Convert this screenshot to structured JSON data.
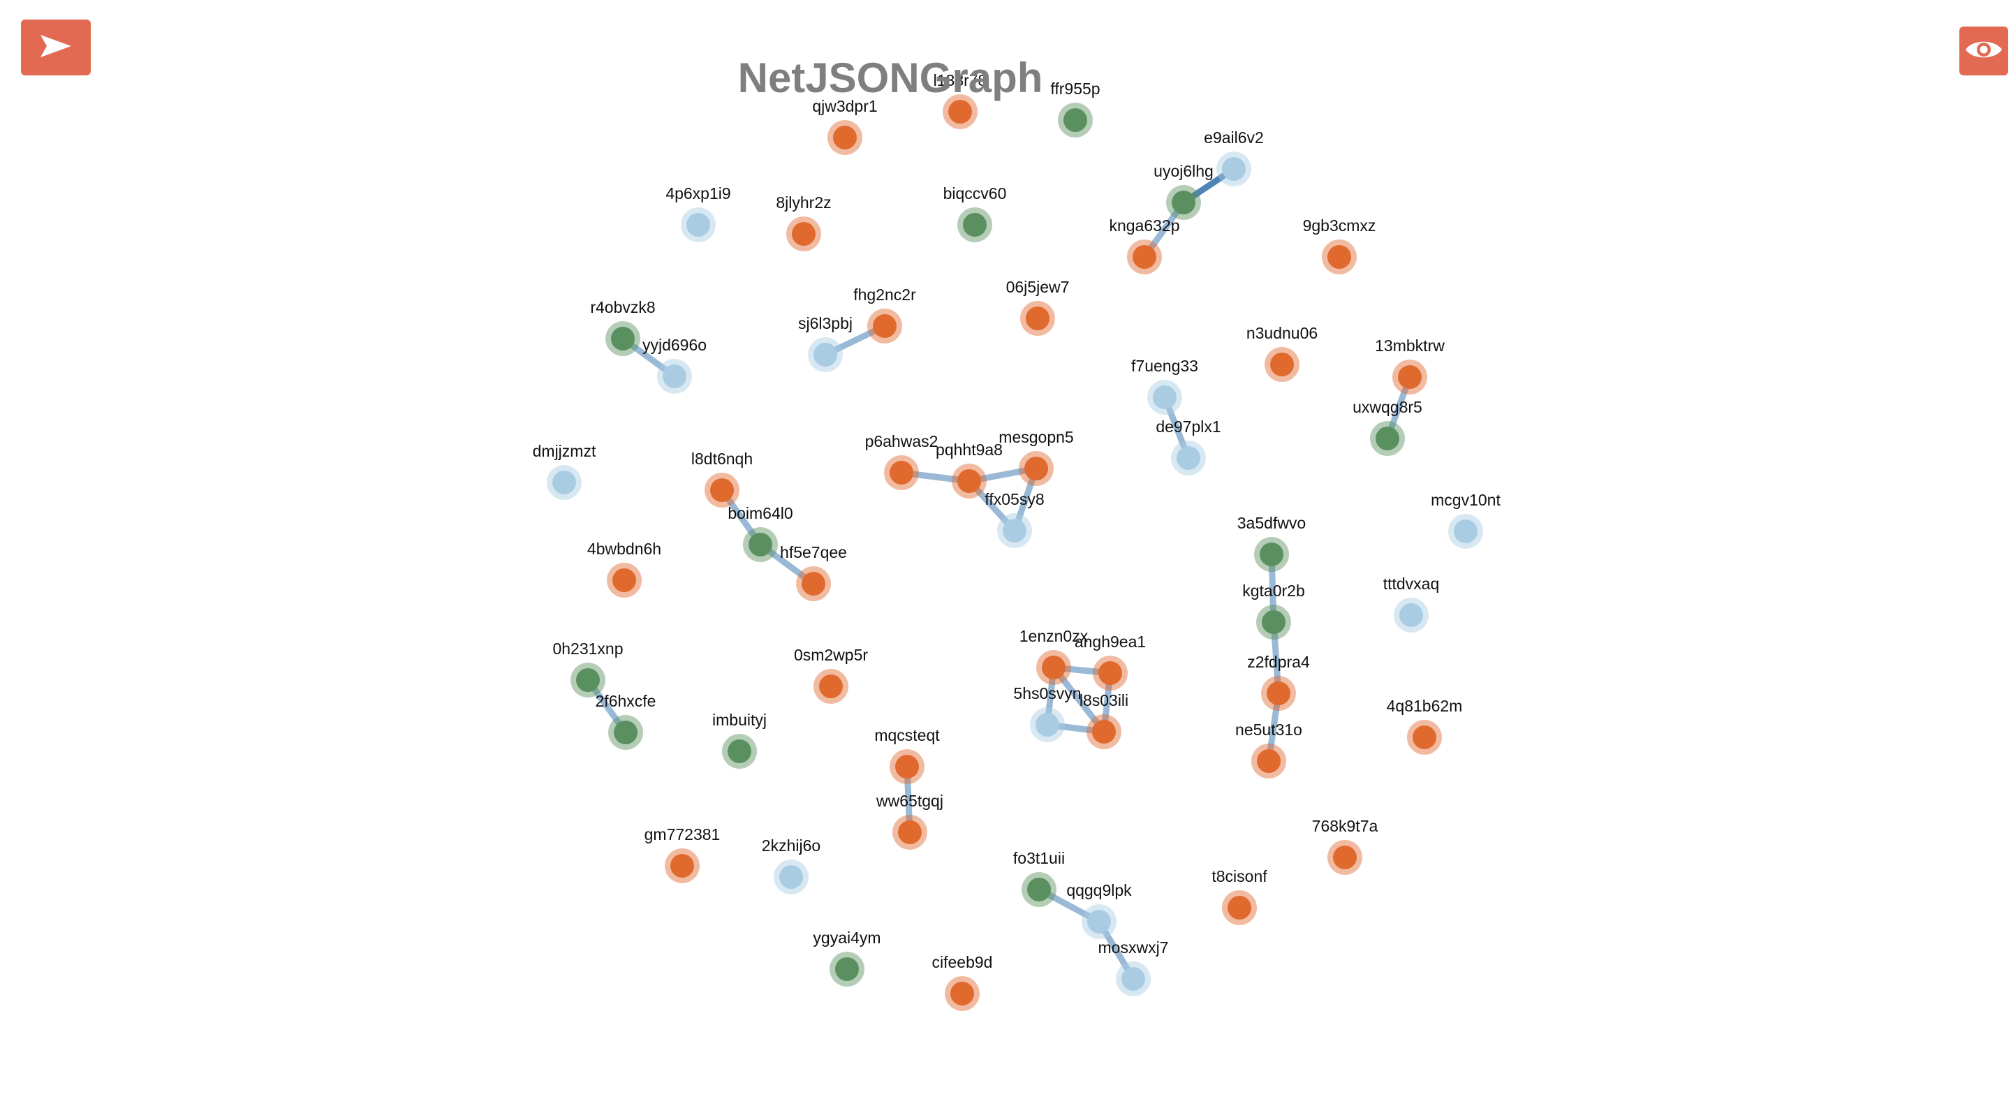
{
  "title": "NetJSONGraph",
  "controls": {
    "menu_icon": "arrow-right-icon",
    "view_icon": "eye-icon",
    "button_color": "#e26a53"
  },
  "colors": {
    "orange": "#e0692e",
    "green": "#5a9060",
    "blue": "#a9cce3",
    "link": "#9ab9d6",
    "link_dark": "#4f84b6"
  },
  "nodes": [
    {
      "id": "l133r78",
      "label": "l133r78",
      "type": "orange"
    },
    {
      "id": "ffr955p",
      "label": "ffr955p",
      "type": "green"
    },
    {
      "id": "qjw3dpr1",
      "label": "qjw3dpr1",
      "type": "orange"
    },
    {
      "id": "e9ail6v2",
      "label": "e9ail6v2",
      "type": "blue"
    },
    {
      "id": "uyoj6lhg",
      "label": "uyoj6lhg",
      "type": "green"
    },
    {
      "id": "4p6xp1i9",
      "label": "4p6xp1i9",
      "type": "blue"
    },
    {
      "id": "8jlyhr2z",
      "label": "8jlyhr2z",
      "type": "orange"
    },
    {
      "id": "biqccv60",
      "label": "biqccv60",
      "type": "green"
    },
    {
      "id": "knga632p",
      "label": "knga632p",
      "type": "orange"
    },
    {
      "id": "9gb3cmxz",
      "label": "9gb3cmxz",
      "type": "orange"
    },
    {
      "id": "fhg2nc2r",
      "label": "fhg2nc2r",
      "type": "orange"
    },
    {
      "id": "06j5jew7",
      "label": "06j5jew7",
      "type": "orange"
    },
    {
      "id": "r4obvzk8",
      "label": "r4obvzk8",
      "type": "green"
    },
    {
      "id": "sj6l3pbj",
      "label": "sj6l3pbj",
      "type": "blue"
    },
    {
      "id": "yyjd696o",
      "label": "yyjd696o",
      "type": "blue"
    },
    {
      "id": "n3udnu06",
      "label": "n3udnu06",
      "type": "orange"
    },
    {
      "id": "13mbktrw",
      "label": "13mbktrw",
      "type": "orange"
    },
    {
      "id": "f7ueng33",
      "label": "f7ueng33",
      "type": "blue"
    },
    {
      "id": "uxwqg8r5",
      "label": "uxwqg8r5",
      "type": "green"
    },
    {
      "id": "de97plx1",
      "label": "de97plx1",
      "type": "blue"
    },
    {
      "id": "dmjjzmzt",
      "label": "dmjjzmzt",
      "type": "blue"
    },
    {
      "id": "l8dt6nqh",
      "label": "l8dt6nqh",
      "type": "orange"
    },
    {
      "id": "p6ahwas2",
      "label": "p6ahwas2",
      "type": "orange"
    },
    {
      "id": "pqhht9a8",
      "label": "pqhht9a8",
      "type": "orange"
    },
    {
      "id": "mesgopn5",
      "label": "mesgopn5",
      "type": "orange"
    },
    {
      "id": "ffx05sy8",
      "label": "ffx05sy8",
      "type": "blue"
    },
    {
      "id": "mcgv10nt",
      "label": "mcgv10nt",
      "type": "blue"
    },
    {
      "id": "boim64l0",
      "label": "boim64l0",
      "type": "green"
    },
    {
      "id": "3a5dfwvo",
      "label": "3a5dfwvo",
      "type": "green"
    },
    {
      "id": "4bwbdn6h",
      "label": "4bwbdn6h",
      "type": "orange"
    },
    {
      "id": "hf5e7qee",
      "label": "hf5e7qee",
      "type": "orange"
    },
    {
      "id": "kgta0r2b",
      "label": "kgta0r2b",
      "type": "green"
    },
    {
      "id": "tttdvxaq",
      "label": "tttdvxaq",
      "type": "blue"
    },
    {
      "id": "1enzn0zx",
      "label": "1enzn0zx",
      "type": "orange"
    },
    {
      "id": "angh9ea1",
      "label": "angh9ea1",
      "type": "orange"
    },
    {
      "id": "0h231xnp",
      "label": "0h231xnp",
      "type": "green"
    },
    {
      "id": "0sm2wp5r",
      "label": "0sm2wp5r",
      "type": "orange"
    },
    {
      "id": "z2fdpra4",
      "label": "z2fdpra4",
      "type": "orange"
    },
    {
      "id": "5hs0svyn",
      "label": "5hs0svyn",
      "type": "blue"
    },
    {
      "id": "l8s03ili",
      "label": "l8s03ili",
      "type": "orange"
    },
    {
      "id": "2f6hxcfe",
      "label": "2f6hxcfe",
      "type": "green"
    },
    {
      "id": "4q81b62m",
      "label": "4q81b62m",
      "type": "orange"
    },
    {
      "id": "imbuityj",
      "label": "imbuityj",
      "type": "green"
    },
    {
      "id": "ne5ut31o",
      "label": "ne5ut31o",
      "type": "orange"
    },
    {
      "id": "mqcsteqt",
      "label": "mqcsteqt",
      "type": "orange"
    },
    {
      "id": "ww65tgqj",
      "label": "ww65tgqj",
      "type": "orange"
    },
    {
      "id": "768k9t7a",
      "label": "768k9t7a",
      "type": "orange"
    },
    {
      "id": "gm772381",
      "label": "gm772381",
      "type": "orange"
    },
    {
      "id": "2kzhij6o",
      "label": "2kzhij6o",
      "type": "blue"
    },
    {
      "id": "fo3t1uii",
      "label": "fo3t1uii",
      "type": "green"
    },
    {
      "id": "t8cisonf",
      "label": "t8cisonf",
      "type": "orange"
    },
    {
      "id": "qqgq9lpk",
      "label": "qqgq9lpk",
      "type": "blue"
    },
    {
      "id": "ygyai4ym",
      "label": "ygyai4ym",
      "type": "green"
    },
    {
      "id": "mosxwxj7",
      "label": "mosxwxj7",
      "type": "blue"
    },
    {
      "id": "cifeeb9d",
      "label": "cifeeb9d",
      "type": "orange"
    }
  ],
  "links": [
    {
      "source": "e9ail6v2",
      "target": "uyoj6lhg",
      "style": "dark"
    },
    {
      "source": "uyoj6lhg",
      "target": "knga632p",
      "style": "light"
    },
    {
      "source": "r4obvzk8",
      "target": "yyjd696o",
      "style": "light"
    },
    {
      "source": "sj6l3pbj",
      "target": "fhg2nc2r",
      "style": "light"
    },
    {
      "source": "13mbktrw",
      "target": "uxwqg8r5",
      "style": "light"
    },
    {
      "source": "f7ueng33",
      "target": "de97plx1",
      "style": "light"
    },
    {
      "source": "p6ahwas2",
      "target": "pqhht9a8",
      "style": "light"
    },
    {
      "source": "pqhht9a8",
      "target": "mesgopn5",
      "style": "light"
    },
    {
      "source": "pqhht9a8",
      "target": "ffx05sy8",
      "style": "light"
    },
    {
      "source": "mesgopn5",
      "target": "ffx05sy8",
      "style": "light"
    },
    {
      "source": "l8dt6nqh",
      "target": "boim64l0",
      "style": "light"
    },
    {
      "source": "boim64l0",
      "target": "hf5e7qee",
      "style": "light"
    },
    {
      "source": "3a5dfwvo",
      "target": "kgta0r2b",
      "style": "light"
    },
    {
      "source": "kgta0r2b",
      "target": "z2fdpra4",
      "style": "light"
    },
    {
      "source": "z2fdpra4",
      "target": "ne5ut31o",
      "style": "light"
    },
    {
      "source": "1enzn0zx",
      "target": "angh9ea1",
      "style": "light"
    },
    {
      "source": "1enzn0zx",
      "target": "5hs0svyn",
      "style": "light"
    },
    {
      "source": "1enzn0zx",
      "target": "l8s03ili",
      "style": "light"
    },
    {
      "source": "angh9ea1",
      "target": "l8s03ili",
      "style": "light"
    },
    {
      "source": "5hs0svyn",
      "target": "l8s03ili",
      "style": "light"
    },
    {
      "source": "0h231xnp",
      "target": "2f6hxcfe",
      "style": "light"
    },
    {
      "source": "mqcsteqt",
      "target": "ww65tgqj",
      "style": "light"
    },
    {
      "source": "fo3t1uii",
      "target": "qqgq9lpk",
      "style": "light"
    },
    {
      "source": "qqgq9lpk",
      "target": "mosxwxj7",
      "style": "light"
    }
  ]
}
